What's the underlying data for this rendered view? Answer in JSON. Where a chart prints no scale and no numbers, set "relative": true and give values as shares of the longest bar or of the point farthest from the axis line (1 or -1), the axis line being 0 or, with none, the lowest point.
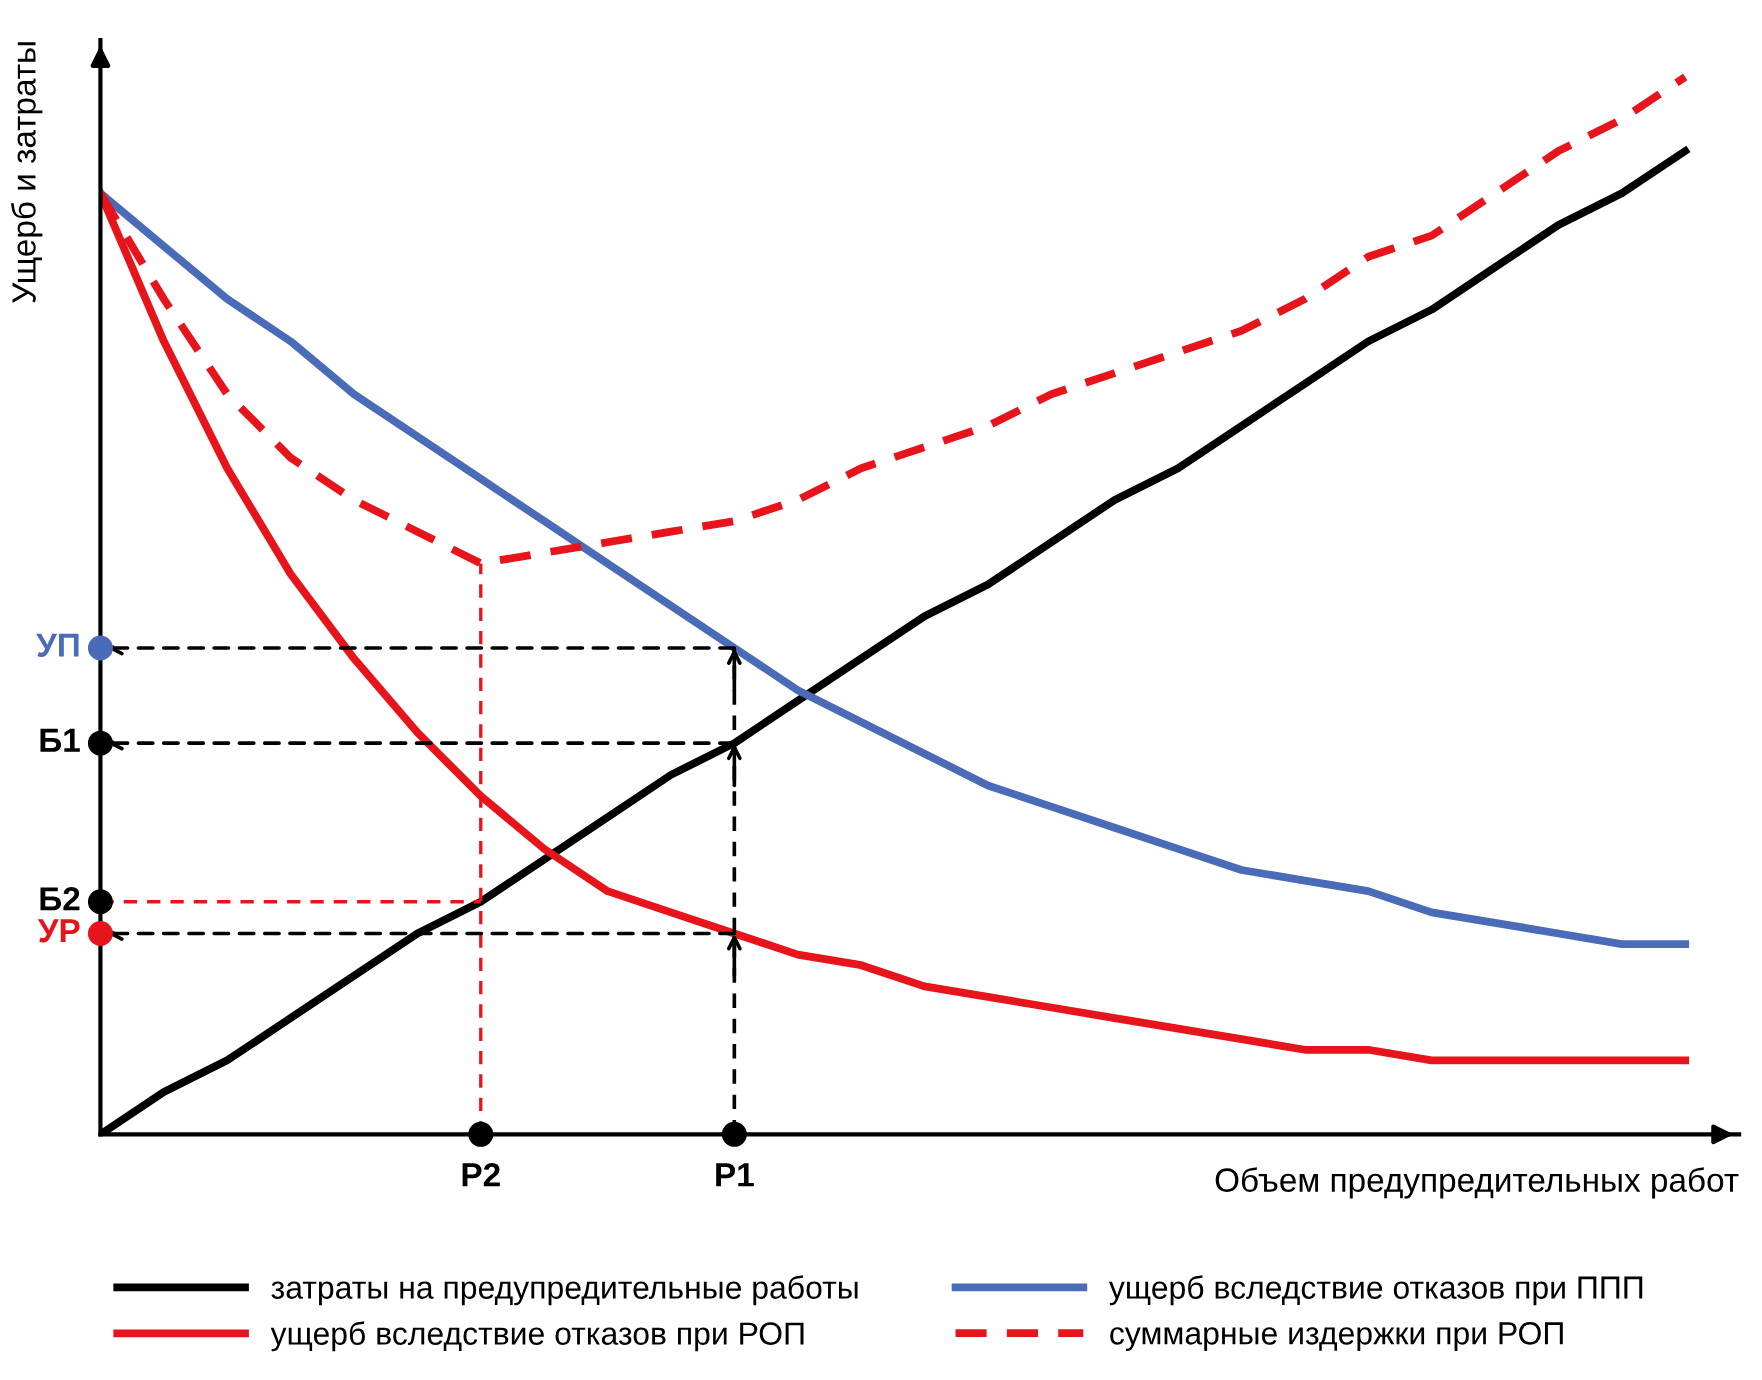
{
  "chart_data": {
    "type": "line",
    "relative": true,
    "xlabel": "Объем предупредительных работ",
    "ylabel": "Ущерб и затраты",
    "categories": [
      null,
      null,
      null,
      null,
      null,
      null,
      "Р2",
      null,
      null,
      null,
      "Р1",
      null,
      null,
      null,
      null,
      null,
      null,
      null,
      null,
      null,
      null,
      null,
      null,
      null,
      null,
      null
    ],
    "series": [
      {
        "name": "затраты на предупредительные работы",
        "color": "#000000",
        "line_style": "solid",
        "values": [
          0,
          0.04,
          0.07,
          0.11,
          0.15,
          0.19,
          0.22,
          0.26,
          0.3,
          0.34,
          0.37,
          0.41,
          0.45,
          0.49,
          0.52,
          0.56,
          0.6,
          0.63,
          0.67,
          0.71,
          0.75,
          0.78,
          0.82,
          0.86,
          0.89,
          0.93
        ]
      },
      {
        "name": "ущерб вследствие отказов при РОП",
        "color": "#e8141c",
        "line_style": "solid",
        "values": [
          0.89,
          0.75,
          0.63,
          0.53,
          0.45,
          0.38,
          0.32,
          0.27,
          0.23,
          0.21,
          0.19,
          0.17,
          0.16,
          0.14,
          0.13,
          0.12,
          0.11,
          0.1,
          0.09,
          0.08,
          0.08,
          0.07,
          0.07,
          0.07,
          0.07,
          0.07
        ]
      },
      {
        "name": "ущерб вследствие отказов при ППП",
        "color": "#4a6cb8",
        "line_style": "solid",
        "values": [
          0.89,
          0.84,
          0.79,
          0.75,
          0.7,
          0.66,
          0.62,
          0.58,
          0.54,
          0.5,
          0.46,
          0.42,
          0.39,
          0.36,
          0.33,
          0.31,
          0.29,
          0.27,
          0.25,
          0.24,
          0.23,
          0.21,
          0.2,
          0.19,
          0.18,
          0.18
        ]
      },
      {
        "name": "суммарные издержки при РОП",
        "color": "#e8141c",
        "line_style": "dashed",
        "values": [
          0.89,
          0.79,
          0.7,
          0.64,
          0.6,
          0.57,
          0.54,
          0.55,
          0.56,
          0.57,
          0.58,
          0.6,
          0.63,
          0.65,
          0.67,
          0.7,
          0.72,
          0.74,
          0.76,
          0.79,
          0.83,
          0.85,
          0.89,
          0.93,
          0.96,
          1.0
        ]
      }
    ],
    "annotations": [
      {
        "text": "УП",
        "x": "Р1",
        "y": 0.46
      },
      {
        "text": "Б1",
        "x": "Р1",
        "y": 0.37
      },
      {
        "text": "Б2",
        "x": "Р2",
        "y": 0.22
      },
      {
        "text": "УР",
        "x": "Р1",
        "y": 0.19
      }
    ],
    "legend": "bottom",
    "grid": false,
    "marker": "none",
    "tick_labels": "x"
  }
}
